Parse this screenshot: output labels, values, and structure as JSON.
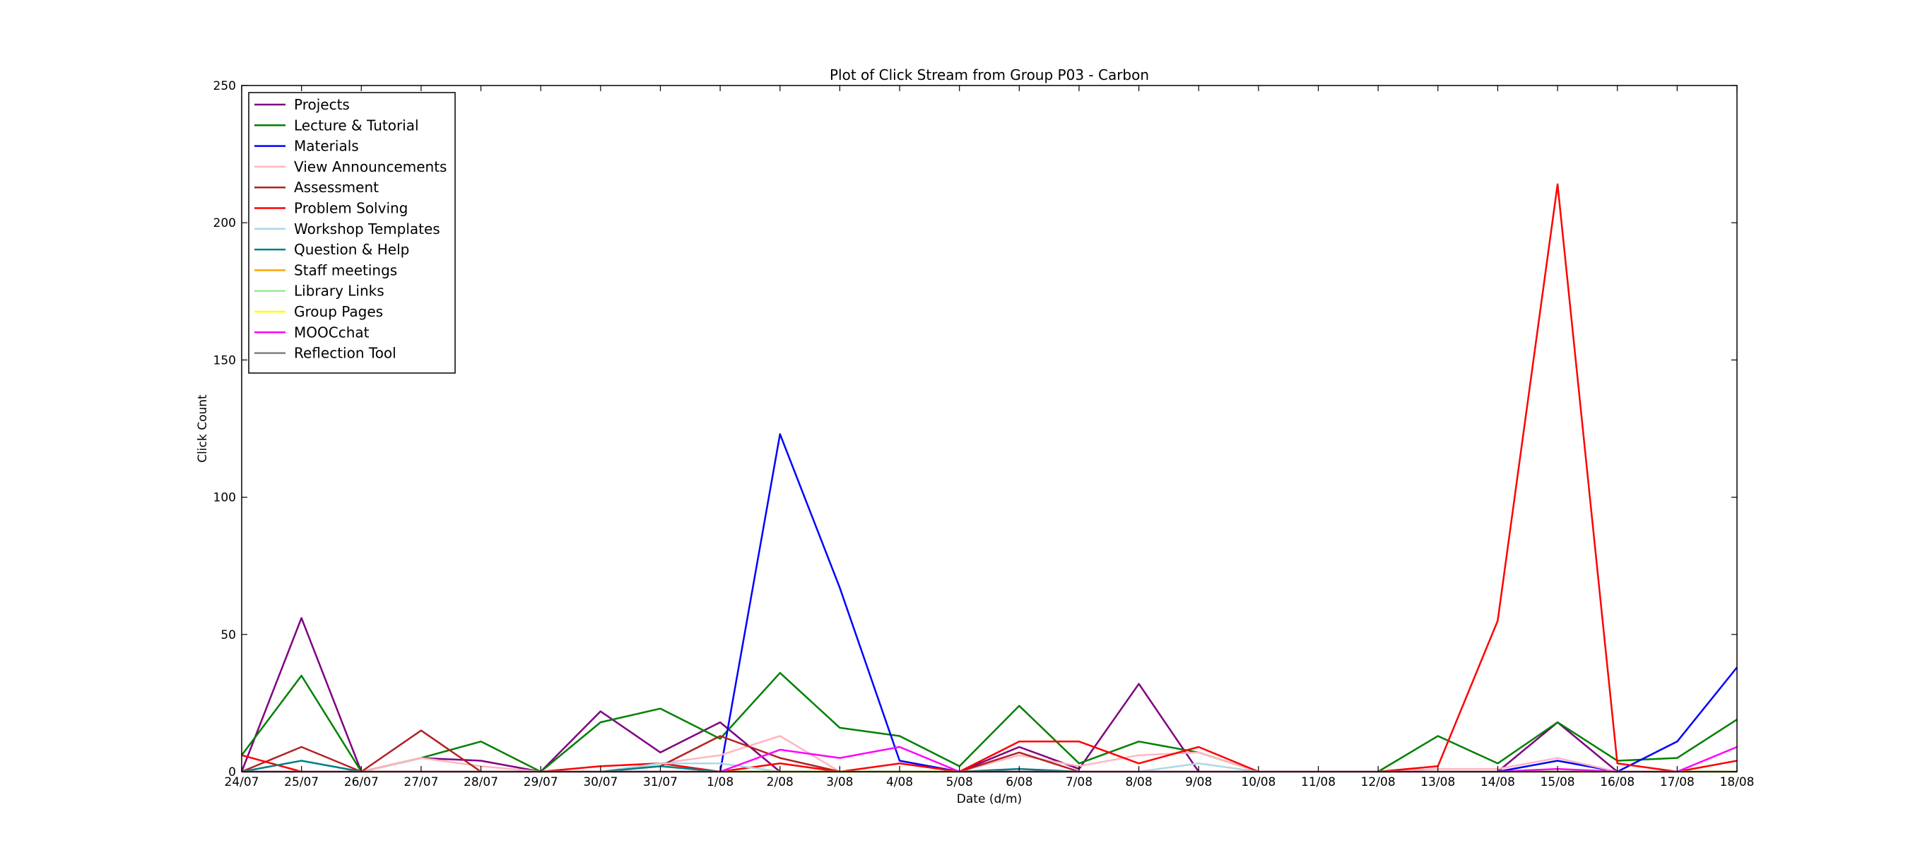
{
  "chart_data": {
    "type": "line",
    "title": "Plot of Click Stream from Group P03 - Carbon",
    "xlabel": "Date (d/m)",
    "ylabel": "Click Count",
    "ylim": [
      0,
      250
    ],
    "yticks": [
      0,
      50,
      100,
      150,
      200,
      250
    ],
    "grid": false,
    "legend_position": "top-left",
    "categories": [
      "24/07",
      "25/07",
      "26/07",
      "27/07",
      "28/07",
      "29/07",
      "30/07",
      "31/07",
      "1/08",
      "2/08",
      "3/08",
      "4/08",
      "5/08",
      "6/08",
      "7/08",
      "8/08",
      "9/08",
      "10/08",
      "11/08",
      "12/08",
      "13/08",
      "14/08",
      "15/08",
      "16/08",
      "17/08",
      "18/08"
    ],
    "series": [
      {
        "name": "Projects",
        "color": "#800080",
        "values": [
          0,
          56,
          0,
          5,
          4,
          0,
          22,
          7,
          18,
          0,
          0,
          0,
          0,
          9,
          1,
          32,
          0,
          0,
          0,
          0,
          0,
          0,
          18,
          0,
          0,
          0
        ]
      },
      {
        "name": "Lecture & Tutorial",
        "color": "#008000",
        "values": [
          6,
          35,
          0,
          5,
          11,
          0,
          18,
          23,
          12,
          36,
          16,
          13,
          2,
          24,
          3,
          11,
          7,
          0,
          0,
          0,
          13,
          3,
          18,
          4,
          5,
          19
        ]
      },
      {
        "name": "Materials",
        "color": "#0000ff",
        "values": [
          0,
          0,
          0,
          0,
          0,
          0,
          0,
          0,
          0,
          123,
          67,
          4,
          0,
          0,
          0,
          0,
          0,
          0,
          0,
          0,
          0,
          0,
          4,
          0,
          11,
          38
        ]
      },
      {
        "name": "View Announcements",
        "color": "#ffb6c1",
        "values": [
          0,
          0,
          0,
          5,
          2,
          0,
          0,
          3,
          6,
          13,
          0,
          0,
          0,
          6,
          2,
          6,
          7,
          0,
          0,
          0,
          1,
          1,
          5,
          0,
          0,
          0
        ]
      },
      {
        "name": "Assessment",
        "color": "#b22222",
        "values": [
          0,
          9,
          0,
          15,
          0,
          0,
          0,
          2,
          13,
          5,
          0,
          0,
          0,
          7,
          0,
          0,
          0,
          0,
          0,
          0,
          0,
          0,
          0,
          0,
          0,
          0
        ]
      },
      {
        "name": "Problem Solving",
        "color": "#ff0000",
        "values": [
          6,
          0,
          0,
          0,
          0,
          0,
          2,
          3,
          0,
          3,
          0,
          3,
          0,
          11,
          11,
          3,
          9,
          0,
          0,
          0,
          2,
          55,
          214,
          3,
          0,
          4
        ]
      },
      {
        "name": "Workshop Templates",
        "color": "#add8e6",
        "values": [
          0,
          0,
          0,
          0,
          0,
          0,
          0,
          3,
          3,
          0,
          0,
          0,
          0,
          1,
          0,
          0,
          3,
          0,
          0,
          0,
          0,
          0,
          0,
          0,
          0,
          0
        ]
      },
      {
        "name": "Question & Help",
        "color": "#008080",
        "values": [
          0,
          4,
          0,
          0,
          0,
          0,
          0,
          2,
          0,
          0,
          0,
          0,
          0,
          1,
          0,
          0,
          0,
          0,
          0,
          0,
          0,
          0,
          0,
          0,
          0,
          0
        ]
      },
      {
        "name": "Staff meetings",
        "color": "#ffa500",
        "values": [
          0,
          0,
          0,
          0,
          0,
          0,
          0,
          0,
          0,
          0,
          0,
          0,
          0,
          0,
          0,
          0,
          0,
          0,
          0,
          0,
          0,
          0,
          0,
          0,
          0,
          0
        ]
      },
      {
        "name": "Library Links",
        "color": "#90ee90",
        "values": [
          0,
          0,
          0,
          0,
          0,
          0,
          0,
          0,
          0,
          0,
          0,
          0,
          0,
          0,
          0,
          0,
          0,
          0,
          0,
          0,
          0,
          0,
          0,
          0,
          0,
          0
        ]
      },
      {
        "name": "Group Pages",
        "color": "#ffff00",
        "values": [
          0,
          0,
          0,
          0,
          0,
          0,
          0,
          0,
          0,
          0,
          0,
          0,
          0,
          0,
          0,
          0,
          0,
          0,
          0,
          0,
          0,
          0,
          0,
          0,
          0,
          0
        ]
      },
      {
        "name": "MOOCchat",
        "color": "#ff00ff",
        "values": [
          0,
          0,
          0,
          0,
          0,
          0,
          0,
          0,
          0,
          8,
          5,
          9,
          0,
          0,
          0,
          0,
          0,
          0,
          0,
          0,
          0,
          0,
          1,
          0,
          0,
          9
        ]
      },
      {
        "name": "Reflection Tool",
        "color": "#808080",
        "values": [
          0,
          0,
          0,
          0,
          0,
          0,
          0,
          0,
          0,
          0,
          0,
          0,
          0,
          0,
          0,
          0,
          0,
          0,
          0,
          0,
          0,
          0,
          0,
          0,
          0,
          0
        ]
      }
    ]
  }
}
